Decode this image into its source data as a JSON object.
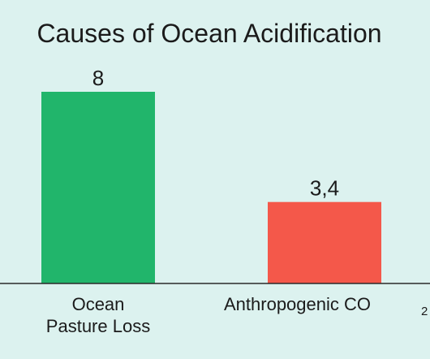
{
  "colors": {
    "background": "#dcf2ef",
    "axis": "#2a2a2a"
  },
  "chart_data": {
    "type": "bar",
    "title": "Causes of Ocean Acidification",
    "categories": [
      [
        "Ocean",
        "Pasture Loss"
      ],
      [
        "Anthropogenic CO",
        "2"
      ]
    ],
    "values": [
      8,
      3.4
    ],
    "value_labels": [
      "8",
      "3,4"
    ],
    "colors": [
      "#21b56b",
      "#f4584a"
    ],
    "ylim": [
      0,
      8
    ],
    "grid": false,
    "legend": "none"
  }
}
